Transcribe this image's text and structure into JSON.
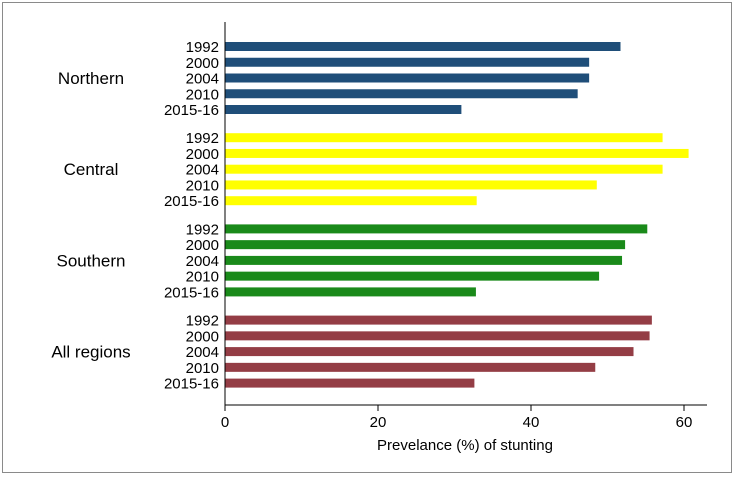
{
  "chart_data": {
    "type": "bar",
    "orientation": "horizontal",
    "title": "",
    "xlabel": "Prevelance (%) of stunting",
    "ylabel": "",
    "xlim": [
      0,
      63
    ],
    "xticks": [
      0,
      20,
      40,
      60
    ],
    "grid": false,
    "legend": "none",
    "categories": [
      "1992",
      "2000",
      "2004",
      "2010",
      "2015-16"
    ],
    "groups": [
      {
        "name": "Northern",
        "color": "#1f4e79",
        "values": [
          51.7,
          47.6,
          47.6,
          46.1,
          30.9
        ]
      },
      {
        "name": "Central",
        "color": "#ffff00",
        "values": [
          57.2,
          60.6,
          57.2,
          48.6,
          32.9
        ]
      },
      {
        "name": "Southern",
        "color": "#1a8a1a",
        "values": [
          55.2,
          52.3,
          51.9,
          48.9,
          32.8
        ]
      },
      {
        "name": "All regions",
        "color": "#943d45",
        "values": [
          55.8,
          55.5,
          53.4,
          48.4,
          32.6
        ]
      }
    ]
  }
}
